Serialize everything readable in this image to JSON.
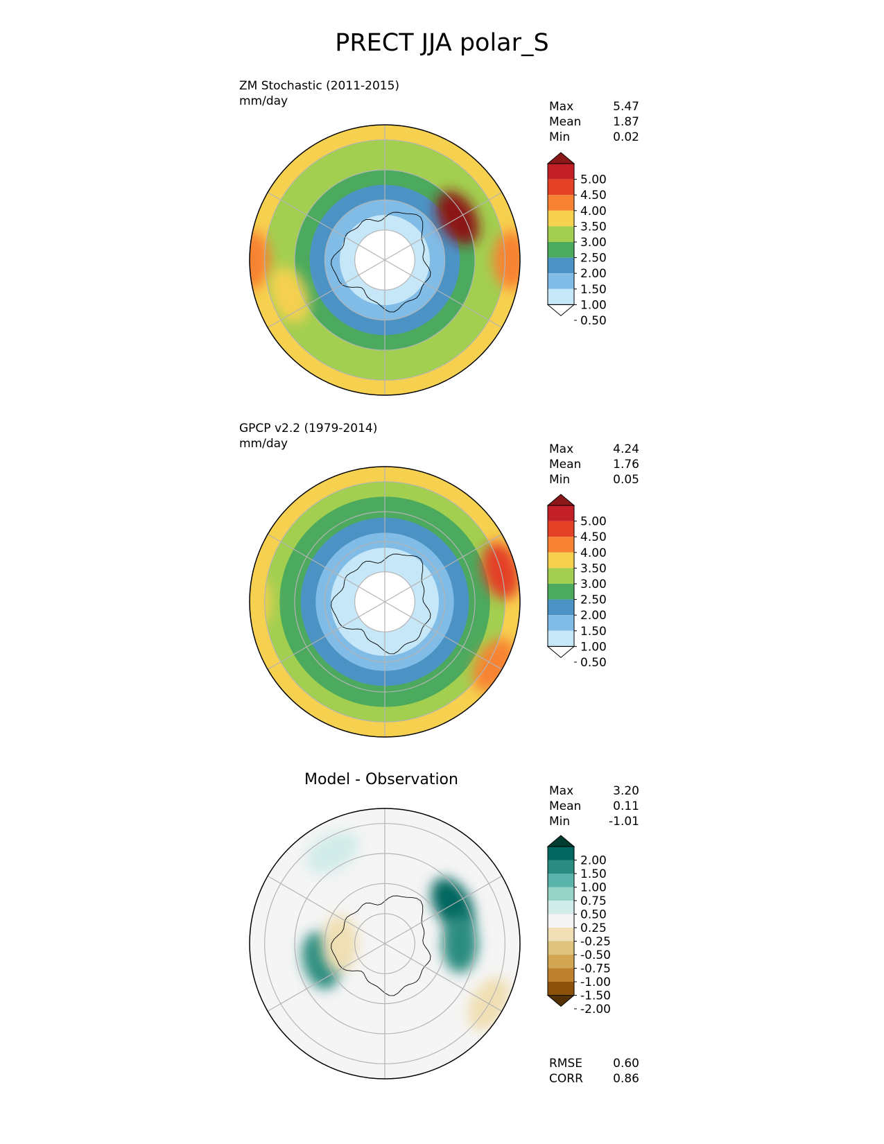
{
  "figure": {
    "title": "PRECT JJA polar_S"
  },
  "colors": {
    "prect_levels": [
      "#ffffff",
      "#c6e7f8",
      "#81bce7",
      "#4c93c5",
      "#4baa5e",
      "#a2cf50",
      "#f6d04f",
      "#f78332",
      "#e44127",
      "#c21f26",
      "#8c1719"
    ],
    "diff_levels": [
      "#543005",
      "#8c510a",
      "#bf812d",
      "#d2a652",
      "#dfc27d",
      "#f0dfb4",
      "#f5f5f5",
      "#d2ece9",
      "#98d3c8",
      "#5ab4ac",
      "#2a8c80",
      "#01665e",
      "#003c30"
    ]
  },
  "chart_data": [
    {
      "type": "heatmap",
      "projection": "south-polar-stereographic",
      "title": "ZM Stochastic (2011-2015)",
      "units": "mm/day",
      "stats": [
        {
          "label": "Max",
          "value": "5.47"
        },
        {
          "label": "Mean",
          "value": "1.87"
        },
        {
          "label": "Min",
          "value": "0.02"
        }
      ],
      "colorbar_ticks": [
        "5.00",
        "4.50",
        "4.00",
        "3.50",
        "3.00",
        "2.50",
        "2.00",
        "1.50",
        "1.00",
        "0.50"
      ],
      "field": {
        "rings": [
          {
            "lat": -90,
            "value": 0.2
          },
          {
            "lat": -80,
            "value": 0.3
          },
          {
            "lat": -75,
            "value": 0.6
          },
          {
            "lat": -70,
            "value": 1.1
          },
          {
            "lat": -65,
            "value": 1.6
          },
          {
            "lat": -60,
            "value": 2.2
          },
          {
            "lat": -55,
            "value": 2.6
          },
          {
            "lat": -50,
            "value": 2.8
          },
          {
            "lat": -45,
            "value": 3.0
          }
        ],
        "anomalies": [
          {
            "lon": 120,
            "lat": -62,
            "value": 5.2
          },
          {
            "lon": 90,
            "lat": -48,
            "value": 3.6
          },
          {
            "lon": -90,
            "lat": -46,
            "value": 3.7
          },
          {
            "lon": -70,
            "lat": -56,
            "value": 3.1
          }
        ]
      }
    },
    {
      "type": "heatmap",
      "projection": "south-polar-stereographic",
      "title": "GPCP v2.2 (1979-2014)",
      "units": "mm/day",
      "stats": [
        {
          "label": "Max",
          "value": "4.24"
        },
        {
          "label": "Mean",
          "value": "1.76"
        },
        {
          "label": "Min",
          "value": "0.05"
        }
      ],
      "colorbar_ticks": [
        "5.00",
        "4.50",
        "4.00",
        "3.50",
        "3.00",
        "2.50",
        "2.00",
        "1.50",
        "1.00",
        "0.50"
      ],
      "field": {
        "rings": [
          {
            "lat": -90,
            "value": 0.2
          },
          {
            "lat": -80,
            "value": 0.3
          },
          {
            "lat": -72,
            "value": 0.7
          },
          {
            "lat": -67,
            "value": 1.2
          },
          {
            "lat": -62,
            "value": 1.6
          },
          {
            "lat": -55,
            "value": 2.1
          },
          {
            "lat": -50,
            "value": 2.6
          },
          {
            "lat": -45,
            "value": 3.0
          }
        ],
        "anomalies": [
          {
            "lon": 105,
            "lat": -50,
            "value": 4.3
          },
          {
            "lon": 60,
            "lat": -48,
            "value": 3.8
          },
          {
            "lon": -90,
            "lat": -46,
            "value": 3.2
          }
        ]
      }
    },
    {
      "type": "heatmap",
      "projection": "south-polar-stereographic",
      "title": "Model - Observation",
      "stats": [
        {
          "label": "Max",
          "value": "3.20"
        },
        {
          "label": "Mean",
          "value": "0.11"
        },
        {
          "label": "Min",
          "value": "-1.01"
        }
      ],
      "extra_stats": [
        {
          "label": "RMSE",
          "value": "0.60"
        },
        {
          "label": "CORR",
          "value": "0.86"
        }
      ],
      "colorbar_ticks": [
        "2.00",
        "1.50",
        "1.00",
        "0.75",
        "0.50",
        "0.25",
        "-0.25",
        "-0.50",
        "-0.75",
        "-1.00",
        "-1.50",
        "-2.00"
      ],
      "field": {
        "rings": [
          {
            "lat": -90,
            "value": 0.0
          },
          {
            "lat": -60,
            "value": 0.1
          },
          {
            "lat": -45,
            "value": 0.0
          }
        ],
        "anomalies": [
          {
            "lon": 120,
            "lat": -64,
            "value": 1.8
          },
          {
            "lon": 90,
            "lat": -65,
            "value": 1.3
          },
          {
            "lon": -75,
            "lat": -68,
            "value": 1.2
          },
          {
            "lon": -90,
            "lat": -75,
            "value": -0.4
          },
          {
            "lon": 60,
            "lat": -50,
            "value": -0.5
          },
          {
            "lon": -150,
            "lat": -55,
            "value": 0.4
          }
        ]
      }
    }
  ]
}
